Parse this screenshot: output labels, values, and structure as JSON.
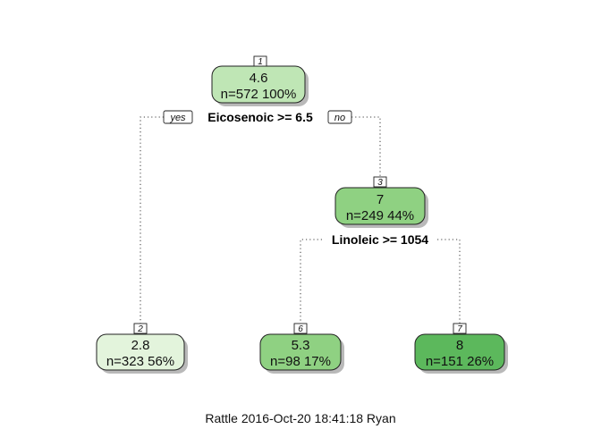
{
  "tree": {
    "nodes": {
      "n1": {
        "id": "1",
        "value": "4.6",
        "count": "n=572  100%",
        "color": "#bfe6b5"
      },
      "n3": {
        "id": "3",
        "value": "7",
        "count": "n=249  44%",
        "color": "#8fd182"
      },
      "n2": {
        "id": "2",
        "value": "2.8",
        "count": "n=323  56%",
        "color": "#e3f4dc"
      },
      "n6": {
        "id": "6",
        "value": "5.3",
        "count": "n=98  17%",
        "color": "#8fd182"
      },
      "n7": {
        "id": "7",
        "value": "8",
        "count": "n=151  26%",
        "color": "#5cb85c"
      }
    },
    "splits": {
      "root": "Eicosenoic >= 6.5",
      "n3": "Linoleic >= 1054"
    },
    "branch_labels": {
      "yes": "yes",
      "no": "no"
    }
  },
  "footer": "Rattle 2016-Oct-20 18:41:18 Ryan"
}
